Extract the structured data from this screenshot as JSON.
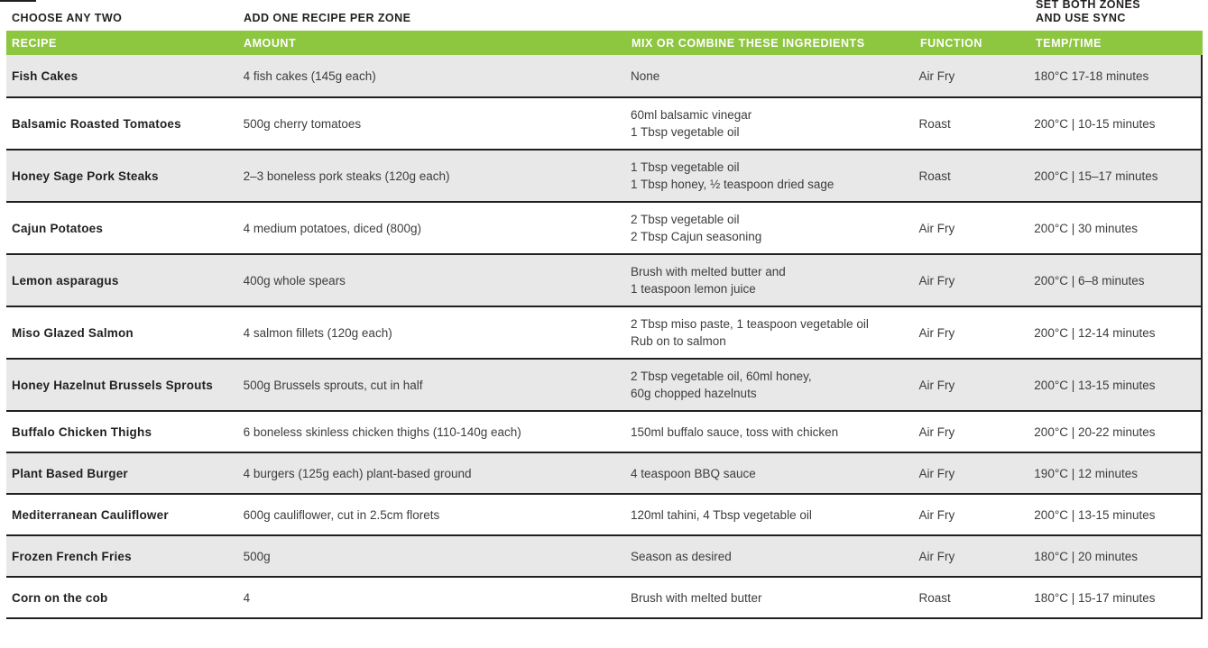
{
  "labels": {
    "choose_any_two": "CHOOSE ANY TWO",
    "add_one_recipe": "ADD ONE RECIPE PER ZONE",
    "set_both_zones_line1": "SET BOTH ZONES",
    "set_both_zones_line2": "AND USE SYNC"
  },
  "colors": {
    "accent_green": "#8dc63f",
    "row_alternate": "#e8e8e8",
    "divider": "#231f20",
    "header_text": "#ffffff"
  },
  "table": {
    "columns": [
      "RECIPE",
      "AMOUNT",
      "MIX OR COMBINE THESE INGREDIENTS",
      "FUNCTION",
      "TEMP/TIME"
    ],
    "rows": [
      {
        "recipe": "Fish Cakes",
        "amount": "4 fish cakes (145g each)",
        "mix": [
          "None"
        ],
        "function": "Air Fry",
        "temp_time": "180°C 17-18 minutes"
      },
      {
        "recipe": "Balsamic Roasted Tomatoes",
        "amount": "500g cherry tomatoes",
        "mix": [
          "60ml balsamic vinegar",
          "1 Tbsp vegetable oil"
        ],
        "function": "Roast",
        "temp_time": "200°C | 10-15 minutes"
      },
      {
        "recipe": "Honey Sage Pork Steaks",
        "amount": "2–3 boneless pork steaks (120g each)",
        "mix": [
          "1 Tbsp vegetable oil",
          "1 Tbsp honey, ½ teaspoon dried sage"
        ],
        "function": "Roast",
        "temp_time": "200°C | 15–17 minutes"
      },
      {
        "recipe": "Cajun Potatoes",
        "amount": "4 medium potatoes, diced (800g)",
        "mix": [
          "2 Tbsp vegetable oil",
          "2 Tbsp Cajun seasoning"
        ],
        "function": "Air Fry",
        "temp_time": "200°C | 30 minutes"
      },
      {
        "recipe": "Lemon asparagus",
        "amount": "400g whole spears",
        "mix": [
          "Brush with melted butter and",
          "1 teaspoon lemon juice"
        ],
        "function": "Air Fry",
        "temp_time": "200°C | 6–8 minutes"
      },
      {
        "recipe": "Miso Glazed Salmon",
        "amount": "4 salmon fillets (120g each)",
        "mix": [
          "2 Tbsp miso paste, 1 teaspoon vegetable oil",
          "Rub on to salmon"
        ],
        "function": "Air Fry",
        "temp_time": "200°C | 12-14 minutes"
      },
      {
        "recipe": "Honey Hazelnut Brussels Sprouts",
        "amount": "500g Brussels sprouts, cut in half",
        "mix": [
          "2 Tbsp vegetable oil, 60ml honey,",
          "60g chopped hazelnuts"
        ],
        "function": "Air Fry",
        "temp_time": "200°C | 13-15 minutes"
      },
      {
        "recipe": "Buffalo Chicken Thighs",
        "amount": "6 boneless skinless chicken thighs (110-140g each)",
        "mix": [
          "150ml buffalo sauce, toss with chicken"
        ],
        "function": "Air Fry",
        "temp_time": "200°C | 20-22 minutes"
      },
      {
        "recipe": "Plant Based Burger",
        "amount": "4 burgers (125g each) plant-based ground",
        "mix": [
          "4 teaspoon BBQ sauce"
        ],
        "function": "Air Fry",
        "temp_time": "190°C | 12 minutes"
      },
      {
        "recipe": "Mediterranean Cauliflower",
        "amount": "600g cauliflower, cut in 2.5cm florets",
        "mix": [
          "120ml tahini, 4 Tbsp vegetable oil"
        ],
        "function": "Air Fry",
        "temp_time": "200°C | 13-15 minutes"
      },
      {
        "recipe": "Frozen French Fries",
        "amount": "500g",
        "mix": [
          "Season as desired"
        ],
        "function": "Air Fry",
        "temp_time": "180°C | 20 minutes"
      },
      {
        "recipe": "Corn on the cob",
        "amount": "4",
        "mix": [
          "Brush with melted butter"
        ],
        "function": "Roast",
        "temp_time": "180°C | 15-17 minutes"
      }
    ]
  }
}
